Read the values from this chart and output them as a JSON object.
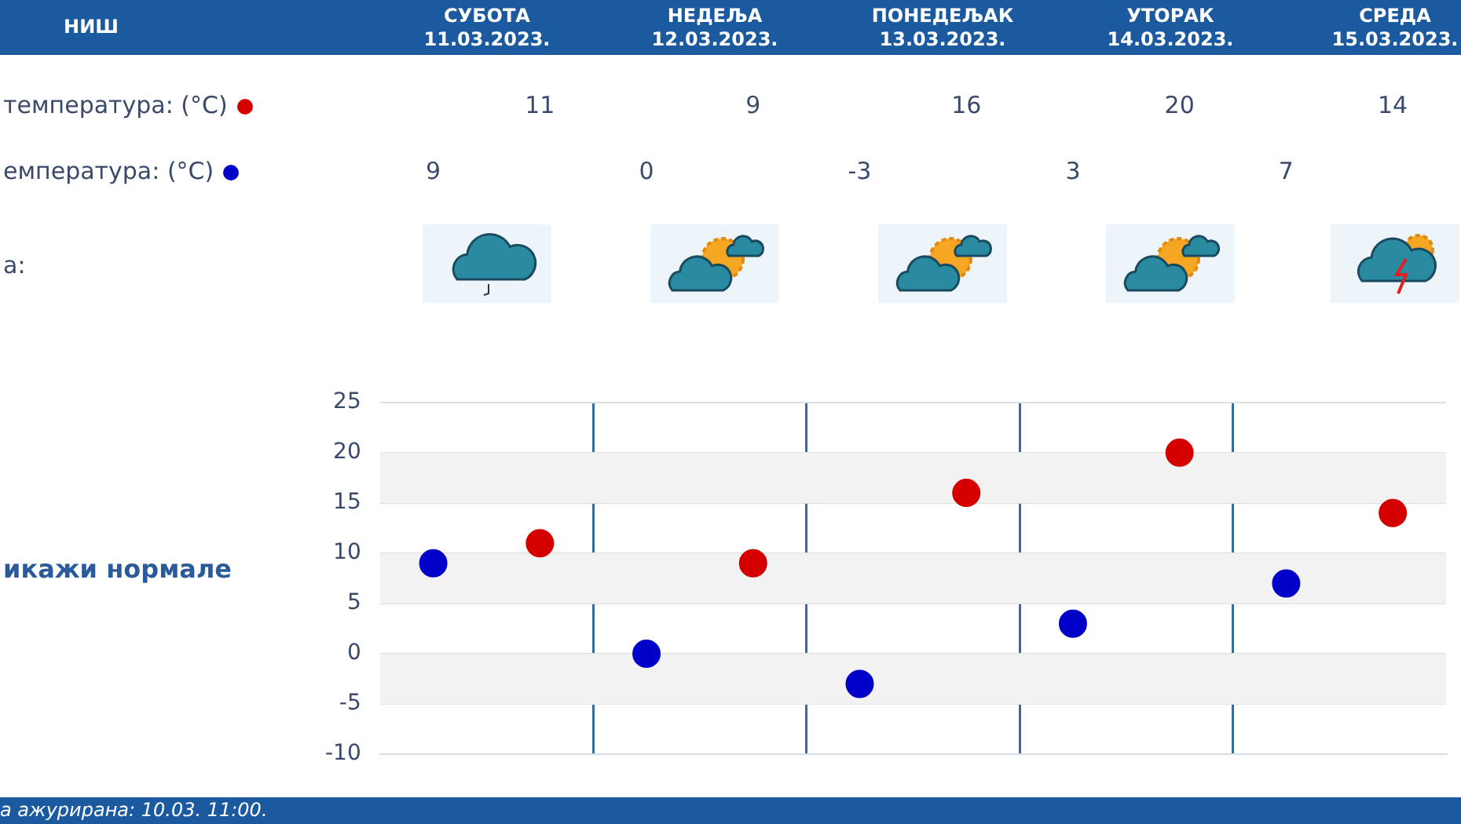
{
  "chart_data": {
    "type": "scatter",
    "title": "НИШ",
    "categories": [
      null,
      null,
      null,
      null,
      null,
      null,
      null,
      null,
      null,
      null
    ],
    "series": [
      {
        "name": "температура: (°C)",
        "color": "#d40000",
        "values": [
          null,
          11,
          null,
          9,
          null,
          16,
          null,
          20,
          null,
          14
        ]
      },
      {
        "name": "емпература: (°C)",
        "color": "#0000c8",
        "values": [
          9,
          null,
          0,
          null,
          -3,
          null,
          3,
          null,
          7,
          null
        ]
      }
    ],
    "ylim": [
      -10,
      25
    ],
    "yticks": [
      -10,
      -5,
      0,
      5,
      10,
      15,
      20,
      25
    ],
    "grid": true,
    "marker": "circle",
    "data_labels": true,
    "legend": "top left",
    "tick_labels": "y",
    "annotations": [
      "СУБОТА",
      "11.03.2023.",
      "НЕДЕЉА",
      "12.03.2023.",
      "ПОНЕДЕЉАК",
      "13.03.2023.",
      "УТОРАК",
      "14.03.2023.",
      "СРЕДА",
      "15.03.2023.",
      "а:",
      "икажи нормале",
      "а ажурирана:  10.03. 11:00."
    ]
  }
}
